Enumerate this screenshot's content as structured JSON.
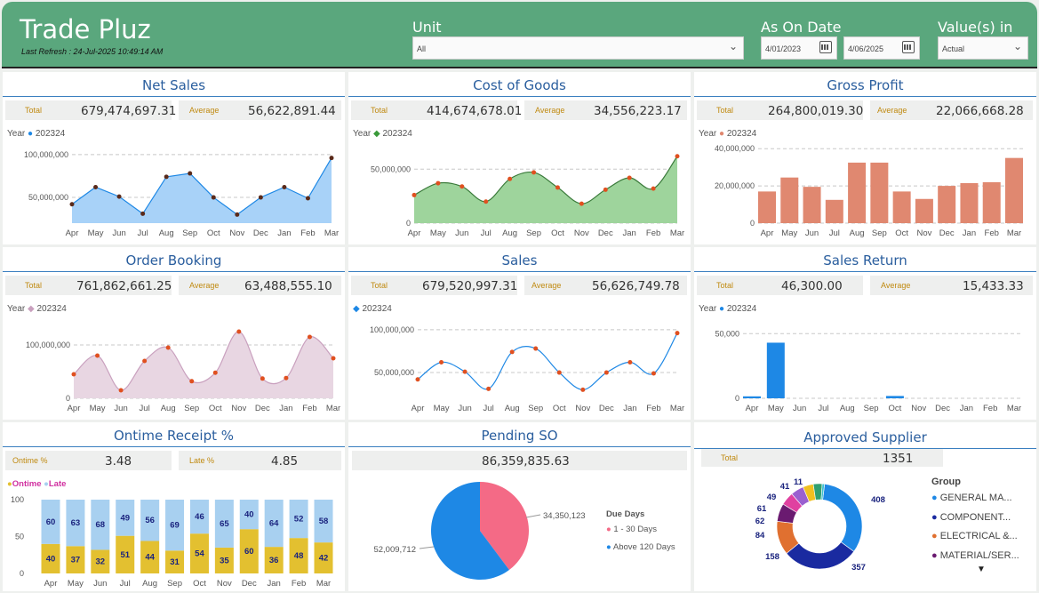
{
  "header": {
    "title": "Trade Pluz",
    "last_refresh": "Last Refresh : 24-Jul-2025 10:49:14 AM",
    "unit_label": "Unit",
    "unit_value": "All",
    "date_label": "As On Date",
    "date_from": "4/01/2023",
    "date_to": "4/06/2025",
    "values_label": "Value(s) in",
    "values_value": "Actual"
  },
  "months": [
    "Apr",
    "May",
    "Jun",
    "Jul",
    "Aug",
    "Sep",
    "Oct",
    "Nov",
    "Dec",
    "Jan",
    "Feb",
    "Mar"
  ],
  "net_sales": {
    "title": "Net Sales",
    "total_label": "Total",
    "total": "679,474,697.31",
    "avg_label": "Average",
    "avg": "56,622,891.44",
    "legend_title": "Year",
    "legend": "202324",
    "ticks": [
      "100,000,000",
      "50,000,000"
    ],
    "color": "#1e88e5"
  },
  "cogs": {
    "title": "Cost of Goods",
    "total_label": "Total",
    "total": "414,674,678.01",
    "avg_label": "Average",
    "avg": "34,556,223.17",
    "legend_title": "Year",
    "legend": "202324",
    "ticks": [
      "50,000,000",
      "0"
    ],
    "color": "#3a9a3a"
  },
  "gross_profit": {
    "title": "Gross Profit",
    "total_label": "Total",
    "total": "264,800,019.30",
    "avg_label": "Average",
    "avg": "22,066,668.28",
    "legend_title": "Year",
    "legend": "202324",
    "ticks": [
      "40,000,000",
      "20,000,000",
      "0"
    ],
    "color": "#e08870"
  },
  "order_booking": {
    "title": "Order Booking",
    "total_label": "Total",
    "total": "761,862,661.25",
    "avg_label": "Average",
    "avg": "63,488,555.10",
    "legend_title": "Year",
    "legend": "202324",
    "ticks": [
      "100,000,000",
      "0"
    ],
    "color": "#c9a0be"
  },
  "sales": {
    "title": "Sales",
    "total_label": "Total",
    "total": "679,520,997.31",
    "avg_label": "Average",
    "avg": "56,626,749.78",
    "legend": "202324",
    "ticks": [
      "100,000,000",
      "50,000,000"
    ],
    "color": "#1e88e5"
  },
  "sales_return": {
    "title": "Sales Return",
    "total_label": "Total",
    "total": "46,300.00",
    "avg_label": "Average",
    "avg": "15,433.33",
    "legend_title": "Year",
    "legend": "202324",
    "ticks": [
      "50,000",
      "0"
    ],
    "color": "#1e88e5"
  },
  "ontime": {
    "title": "Ontime Receipt %",
    "ontime_label": "Ontime %",
    "ontime": "3.48",
    "late_label": "Late %",
    "late": "4.85",
    "legend_ontime": "Ontime",
    "legend_late": "Late",
    "ticks": [
      "100",
      "50",
      "0"
    ],
    "ontime_color": "#e3c030",
    "late_color": "#a8d0f0"
  },
  "pending_so": {
    "title": "Pending SO",
    "total": "86,359,835.63",
    "legend_title": "Due Days",
    "legend_a": "1 - 30 Days",
    "legend_b": "Above 120 Days",
    "label_a": "34,350,123",
    "label_b": "52,009,712",
    "color_a": "#f46a86",
    "color_b": "#1e88e5"
  },
  "approved_supplier": {
    "title": "Approved Supplier",
    "total_label": "Total",
    "total": "1351",
    "legend_title": "Group",
    "legend": [
      {
        "name": "GENERAL MA...",
        "color": "#1e88e5"
      },
      {
        "name": "COMPONENT...",
        "color": "#1a2aa0"
      },
      {
        "name": "ELECTRICAL &...",
        "color": "#e07030"
      },
      {
        "name": "MATERIAL/SER...",
        "color": "#6a1a70"
      }
    ],
    "labels": [
      "408",
      "357",
      "158",
      "84",
      "62",
      "61",
      "49",
      "41",
      "11"
    ]
  },
  "chart_data": [
    {
      "type": "area",
      "title": "Net Sales",
      "x": [
        "Apr",
        "May",
        "Jun",
        "Jul",
        "Aug",
        "Sep",
        "Oct",
        "Nov",
        "Dec",
        "Jan",
        "Feb",
        "Mar"
      ],
      "series": [
        {
          "name": "202324",
          "values": [
            42000000,
            62000000,
            51000000,
            31000000,
            74000000,
            78000000,
            50000000,
            30000000,
            50000000,
            62000000,
            49000000,
            96000000
          ]
        }
      ],
      "ylim": [
        20000000,
        105000000
      ]
    },
    {
      "type": "area",
      "title": "Cost of Goods",
      "x": [
        "Apr",
        "May",
        "Jun",
        "Jul",
        "Aug",
        "Sep",
        "Oct",
        "Nov",
        "Dec",
        "Jan",
        "Feb",
        "Mar"
      ],
      "series": [
        {
          "name": "202324",
          "values": [
            26000000,
            37000000,
            34000000,
            20000000,
            41000000,
            47000000,
            33000000,
            18000000,
            31000000,
            42000000,
            32000000,
            62000000
          ]
        }
      ],
      "ylim": [
        0,
        70000000
      ]
    },
    {
      "type": "bar",
      "title": "Gross Profit",
      "categories": [
        "Apr",
        "May",
        "Jun",
        "Jul",
        "Aug",
        "Sep",
        "Oct",
        "Nov",
        "Dec",
        "Jan",
        "Feb",
        "Mar"
      ],
      "series": [
        {
          "name": "202324",
          "values": [
            17000000,
            24500000,
            19500000,
            12500000,
            32500000,
            32500000,
            17000000,
            13000000,
            20000000,
            21500000,
            22000000,
            35000000
          ]
        }
      ],
      "ylim": [
        0,
        42000000
      ]
    },
    {
      "type": "area",
      "title": "Order Booking",
      "x": [
        "Apr",
        "May",
        "Jun",
        "Jul",
        "Aug",
        "Sep",
        "Oct",
        "Nov",
        "Dec",
        "Jan",
        "Feb",
        "Mar"
      ],
      "series": [
        {
          "name": "202324",
          "values": [
            45000000,
            80000000,
            15000000,
            70000000,
            95000000,
            32000000,
            48000000,
            125000000,
            37000000,
            38000000,
            115000000,
            75000000
          ]
        }
      ],
      "ylim": [
        0,
        150000000
      ]
    },
    {
      "type": "line",
      "title": "Sales",
      "x": [
        "Apr",
        "May",
        "Jun",
        "Jul",
        "Aug",
        "Sep",
        "Oct",
        "Nov",
        "Dec",
        "Jan",
        "Feb",
        "Mar"
      ],
      "series": [
        {
          "name": "202324",
          "values": [
            42000000,
            62000000,
            51000000,
            31000000,
            74000000,
            78000000,
            50000000,
            30000000,
            50000000,
            62000000,
            49000000,
            96000000
          ]
        }
      ],
      "ylim": [
        20000000,
        105000000
      ]
    },
    {
      "type": "bar",
      "title": "Sales Return",
      "categories": [
        "Apr",
        "May",
        "Jun",
        "Jul",
        "Aug",
        "Sep",
        "Oct",
        "Nov",
        "Dec",
        "Jan",
        "Feb",
        "Mar"
      ],
      "series": [
        {
          "name": "202324",
          "values": [
            1500,
            43000,
            0,
            0,
            0,
            0,
            1800,
            0,
            0,
            0,
            0,
            0
          ]
        }
      ],
      "ylim": [
        0,
        55000
      ]
    },
    {
      "type": "bar",
      "title": "Ontime Receipt %",
      "categories": [
        "Apr",
        "May",
        "Jun",
        "Jul",
        "Aug",
        "Sep",
        "Oct",
        "Nov",
        "Dec",
        "Jan",
        "Feb",
        "Mar"
      ],
      "series": [
        {
          "name": "Ontime",
          "values": [
            40,
            37,
            32,
            51,
            44,
            31,
            54,
            35,
            60,
            36,
            48,
            42
          ]
        },
        {
          "name": "Late",
          "values": [
            60,
            63,
            68,
            49,
            56,
            69,
            46,
            65,
            40,
            64,
            52,
            58
          ]
        }
      ],
      "ylim": [
        0,
        100
      ]
    },
    {
      "type": "pie",
      "title": "Pending SO",
      "categories": [
        "1 - 30 Days",
        "Above 120 Days"
      ],
      "values": [
        34350123,
        52009712
      ]
    },
    {
      "type": "pie",
      "title": "Approved Supplier",
      "values": [
        408,
        357,
        158,
        84,
        62,
        61,
        49,
        41,
        11
      ]
    }
  ]
}
